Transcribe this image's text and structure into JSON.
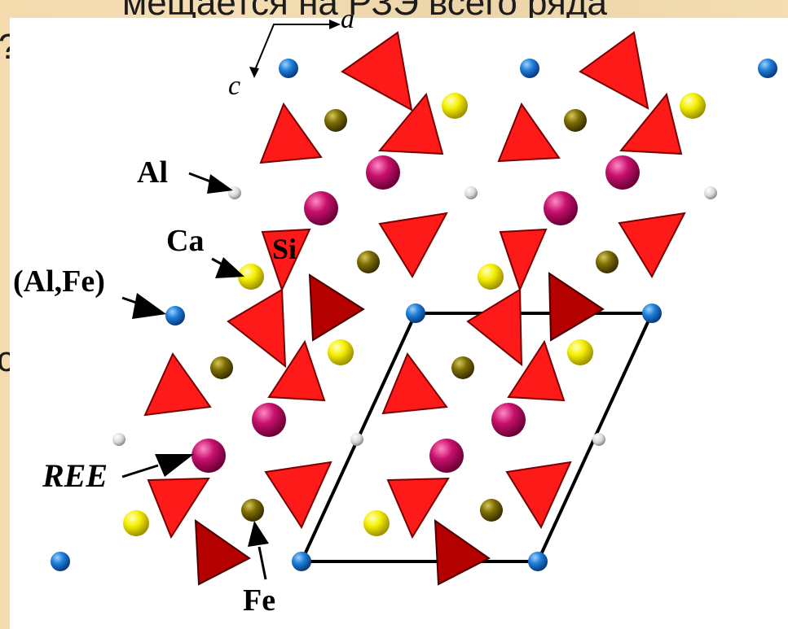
{
  "background_text": {
    "line1": "мещается на РЗЭ всего ряда",
    "line2": "?)",
    "line3": "с"
  },
  "axes": {
    "a_label": "a",
    "c_label": "c"
  },
  "labels": {
    "al": "Al",
    "ca": "Ca",
    "si": "Si",
    "al_fe": "(Al,Fe)",
    "ree": "REE",
    "fe": "Fe"
  },
  "colors": {
    "background": "#f3dbae",
    "panel": "#ffffff",
    "tetra_light": "#ff1a1a",
    "tetra_dark": "#b30000",
    "blue_atom": "#1565c0",
    "white_atom": "#e0e0e0",
    "yellow_atom": "#f2ea00",
    "olive_atom": "#7a6a00",
    "magenta_atom": "#c0106a",
    "cell_outline": "#000000"
  }
}
